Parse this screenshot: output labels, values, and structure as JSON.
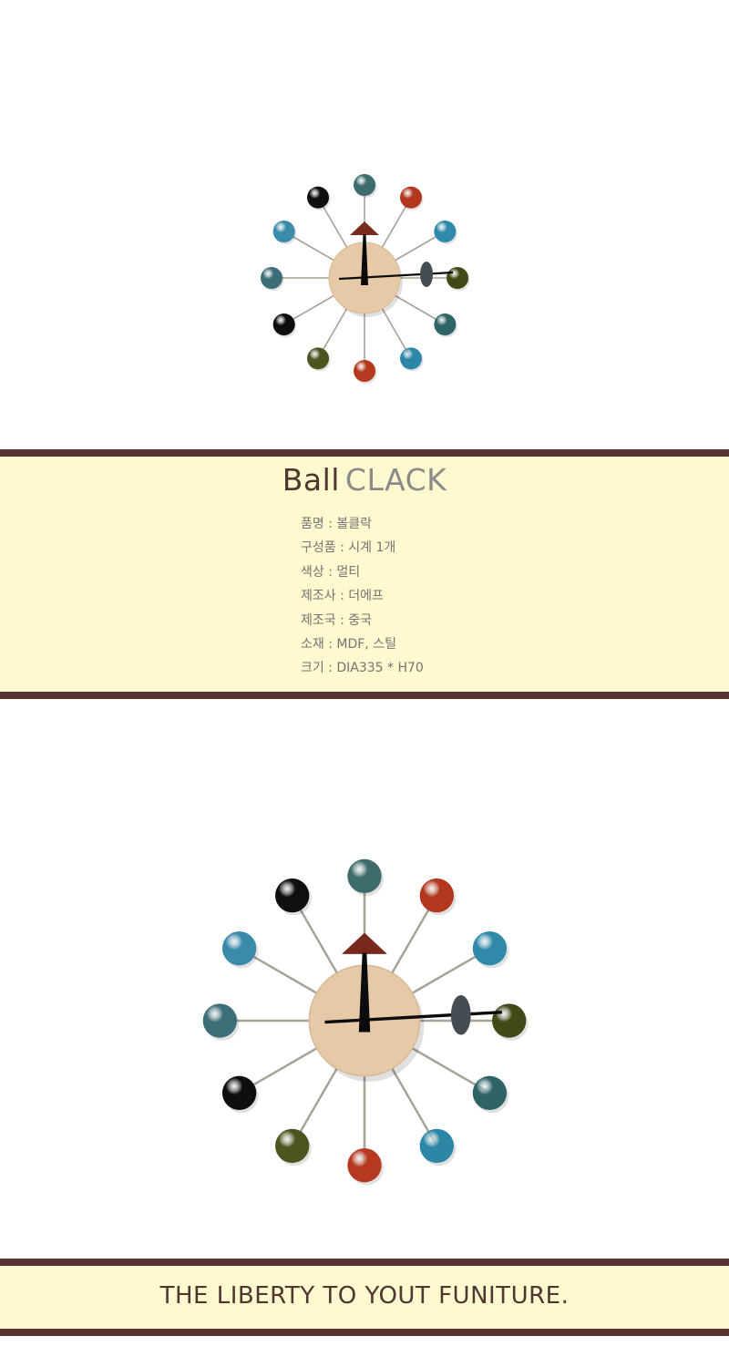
{
  "product": {
    "title_part1": "Ball",
    "title_part2": "CLACK",
    "specs": [
      "품명 : 볼클락",
      "구성품 : 시계 1개",
      "색상 : 멀티",
      "제조사 : 더에프",
      "제조국 : 중국",
      "소재 : MDF, 스틸",
      "크기 : DIA335 * H70"
    ]
  },
  "footer": {
    "tagline": "THE LIBERTY TO YOUT FUNITURE."
  },
  "clock": {
    "ball_colors": [
      "#3e6b6b",
      "#b3361f",
      "#2e8aa8",
      "#3f4a17",
      "#2f6466",
      "#2c86a6",
      "#b5381f",
      "#4a5520",
      "#0e0e0e",
      "#3c6e78",
      "#3a8aaa",
      "#0f0f0f"
    ],
    "face_color": "#e6c9a6",
    "arrow_color": "#7a2a1c",
    "pendulum_color": "#454c52",
    "band_color": "#fff9cf",
    "bar_color": "#5a3430"
  }
}
